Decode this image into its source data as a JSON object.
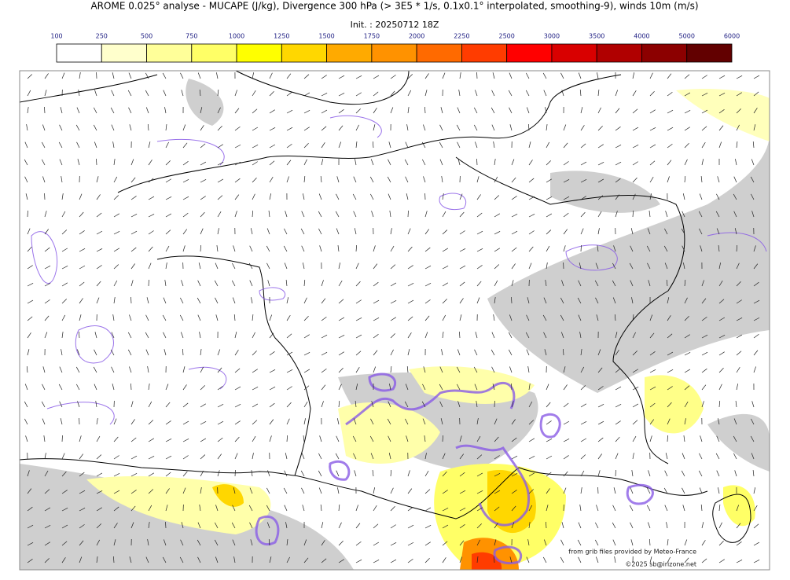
{
  "header": {
    "title": "AROME 0.025° analyse - MUCAPE (J/kg), Divergence 300 hPa (> 3E5 * 1/s, 0.1x0.1° interpolated, smoothing-9), winds 10m (m/s)",
    "init": "Init. : 20250712 18Z"
  },
  "colorbar": {
    "ticks": [
      100,
      250,
      500,
      750,
      1000,
      1250,
      1500,
      1750,
      2000,
      2250,
      2500,
      3000,
      3500,
      4000,
      5000,
      6000
    ],
    "colors": [
      "#ffffff",
      "#ffffcc",
      "#ffff99",
      "#ffff66",
      "#ffff00",
      "#ffd700",
      "#ffaa00",
      "#ff9200",
      "#ff6a00",
      "#ff3c00",
      "#ff0000",
      "#d90000",
      "#b00000",
      "#8c0000",
      "#620000"
    ]
  },
  "credits": {
    "source": "from grib files provided by Meteo-France",
    "copyright": "©2025 sb@irizone.net"
  }
}
